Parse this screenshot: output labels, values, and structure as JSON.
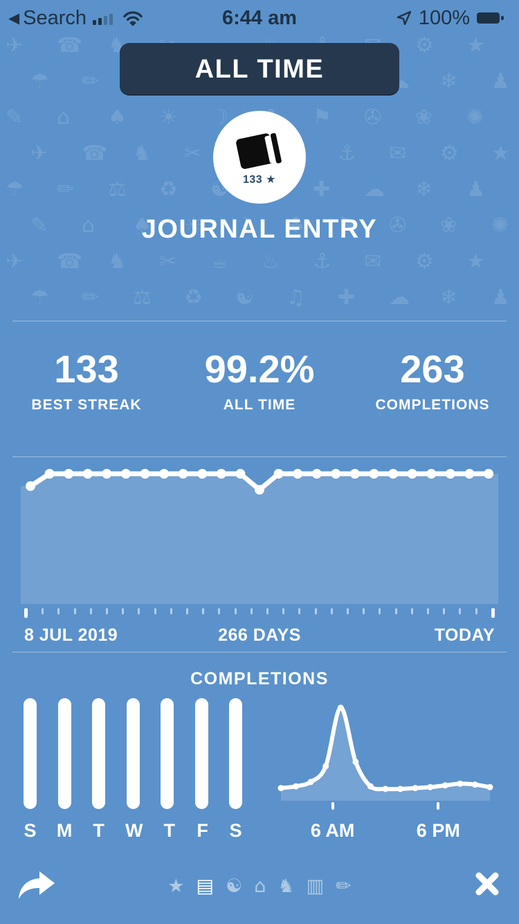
{
  "colors": {
    "background": "#5b92cb",
    "navy_button": "#26384d",
    "status_text": "#1e3246",
    "white": "#ffffff",
    "area_fill": "rgba(255,255,255,0.14)"
  },
  "status_bar": {
    "back_label": "Search",
    "time": "6:44 am",
    "battery_percent": "100%"
  },
  "header": {
    "period_button_label": "ALL TIME",
    "streak_badge": "133 ★",
    "title": "JOURNAL ENTRY"
  },
  "stats": [
    {
      "value": "133",
      "label": "BEST STREAK"
    },
    {
      "value": "99.2%",
      "label": "ALL TIME"
    },
    {
      "value": "263",
      "label": "COMPLETIONS"
    }
  ],
  "completions_section": {
    "title": "COMPLETIONS"
  },
  "chart_data": [
    {
      "type": "area",
      "title": "Streak history (completion level per period)",
      "x_start_label": "8 JUL 2019",
      "x_mid_label": "266 DAYS",
      "x_end_label": "TODAY",
      "ylim": [
        0,
        1
      ],
      "tick_count": 30,
      "values": [
        0.9,
        1,
        1,
        1,
        1,
        1,
        1,
        1,
        1,
        1,
        1,
        1,
        0.87,
        1,
        1,
        1,
        1,
        1,
        1,
        1,
        1,
        1,
        1,
        1,
        1
      ]
    },
    {
      "type": "bar",
      "title": "Completions by day of week",
      "categories": [
        "S",
        "M",
        "T",
        "W",
        "T",
        "F",
        "S"
      ],
      "values": [
        1,
        1,
        1,
        1,
        1,
        1,
        1
      ],
      "ylim": [
        0,
        1
      ]
    },
    {
      "type": "line",
      "title": "Completions by time of day",
      "tick_labels": [
        "6 AM",
        "6 PM"
      ],
      "tick_positions": [
        0.26,
        0.74
      ],
      "ylim": [
        0,
        1
      ],
      "values": [
        0.05,
        0.07,
        0.12,
        0.3,
        0.97,
        0.35,
        0.07,
        0.04,
        0.04,
        0.05,
        0.06,
        0.08,
        0.1,
        0.09,
        0.06
      ]
    }
  ],
  "footer": {
    "pager_icons": [
      {
        "name": "star-icon",
        "glyph": "★",
        "active": false
      },
      {
        "name": "journal-icon",
        "glyph": "▤",
        "active": true
      },
      {
        "name": "brain-icon",
        "glyph": "☯",
        "active": false
      },
      {
        "name": "bed-icon",
        "glyph": "⌂",
        "active": false
      },
      {
        "name": "bird-icon",
        "glyph": "♞",
        "active": false
      },
      {
        "name": "book-icon",
        "glyph": "▥",
        "active": false
      },
      {
        "name": "pen-icon",
        "glyph": "✏",
        "active": false
      }
    ]
  },
  "background_watermark": {
    "rows": 8,
    "cols": 10,
    "glyphs": [
      "✈",
      "☎",
      "♞",
      "✂",
      "☕",
      "♨",
      "⚓",
      "✉",
      "⚙",
      "★",
      "☂",
      "✏",
      "⚖",
      "♻",
      "☯",
      "♫",
      "✚",
      "☁",
      "❄",
      "♟",
      "✎",
      "⌂",
      "♠",
      "☀",
      "☽",
      "♣",
      "⚑",
      "✇",
      "❀",
      "✺"
    ]
  }
}
